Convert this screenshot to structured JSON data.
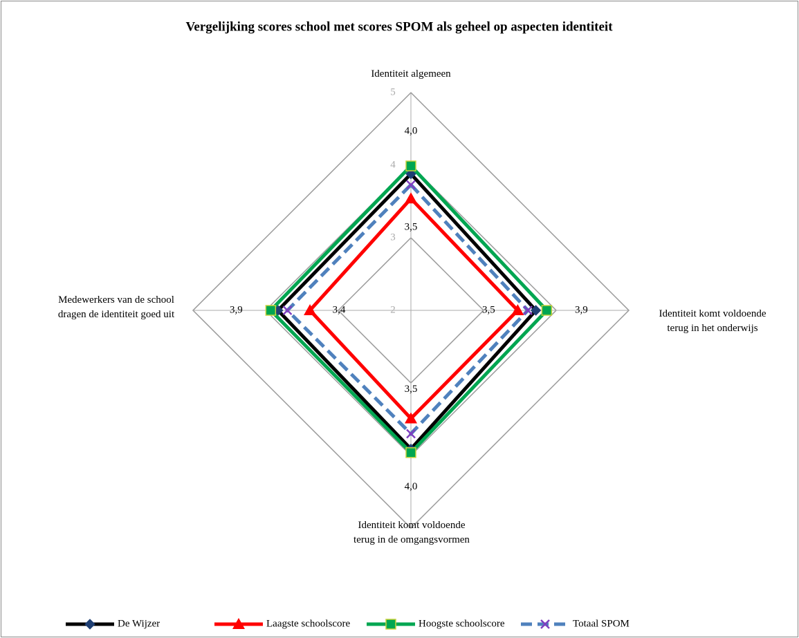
{
  "chart_data": {
    "type": "radar",
    "title": "Vergelijking scores school met scores SPOM als geheel op aspecten identiteit",
    "categories": [
      "Identiteit algemeen",
      "Identiteit komt voldoende terug in het onderwijs",
      "Identiteit komt voldoende terug in de omgangsvormen",
      "Medewerkers van de school dragen de identiteit goed uit"
    ],
    "rlim": [
      2,
      5
    ],
    "rticks": [
      2,
      3,
      4,
      5
    ],
    "grid": true,
    "legend": "bottom",
    "series": [
      {
        "name": "De Wijzer",
        "color": "#000000",
        "marker": "diamond",
        "marker_color": "#1f3f73",
        "line_style": "solid",
        "values": [
          3.88,
          3.72,
          3.91,
          3.83
        ]
      },
      {
        "name": "Laagste schoolscore",
        "color": "#ff0000",
        "marker": "triangle",
        "marker_color": "#ff0000",
        "line_style": "solid",
        "values": [
          3.54,
          3.47,
          3.49,
          3.39
        ],
        "value_labels": [
          "3,5",
          "3,5",
          "3,5",
          "3,4"
        ]
      },
      {
        "name": "Hoogste schoolscore",
        "color": "#00a651",
        "marker": "square",
        "marker_color": "#00a651",
        "line_style": "solid",
        "values": [
          3.99,
          3.87,
          3.96,
          3.93
        ],
        "value_labels": [
          "4,0",
          "3,9",
          "4,0",
          "3,9"
        ]
      },
      {
        "name": "Totaal SPOM",
        "color": "#4f81bd",
        "marker": "x",
        "marker_color": "#7f3fbf",
        "line_style": "dashed",
        "values": [
          3.73,
          3.61,
          3.7,
          3.7
        ]
      }
    ]
  }
}
